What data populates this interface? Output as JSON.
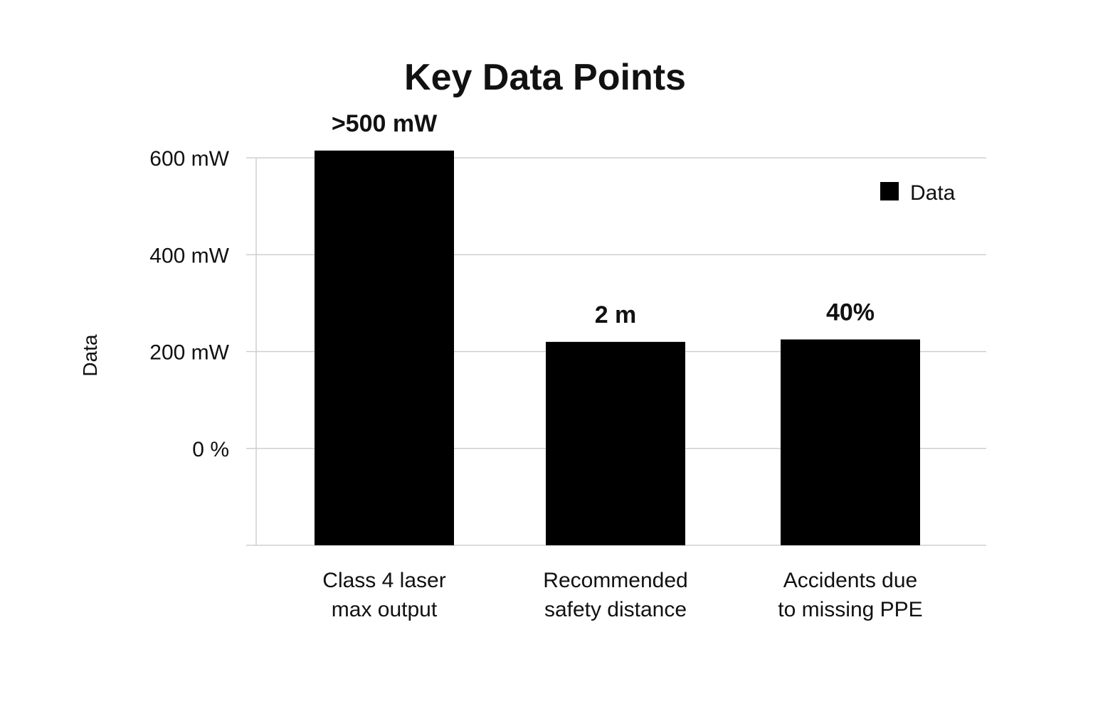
{
  "chart_data": {
    "type": "bar",
    "title": "Key Data Points",
    "ylabel": "Data",
    "xlabel": "",
    "categories": [
      [
        "Class 4 laser",
        "max output"
      ],
      [
        "Recommended",
        "safety distance"
      ],
      [
        "Accidents due",
        "to missing PPE"
      ]
    ],
    "series": [
      {
        "name": "Data",
        "color": "#000000",
        "values": [
          615,
          220,
          225
        ],
        "value_labels": [
          ">500 mW",
          "2 m",
          "40%"
        ]
      }
    ],
    "y_ticks": [
      {
        "value": 0,
        "label": "0 %"
      },
      {
        "value": 200,
        "label": "200 mW"
      },
      {
        "value": 400,
        "label": "400 mW"
      },
      {
        "value": 600,
        "label": "600 mW"
      }
    ],
    "ylim": [
      -200,
      600
    ],
    "grid": true,
    "legend_position": "top-right"
  }
}
